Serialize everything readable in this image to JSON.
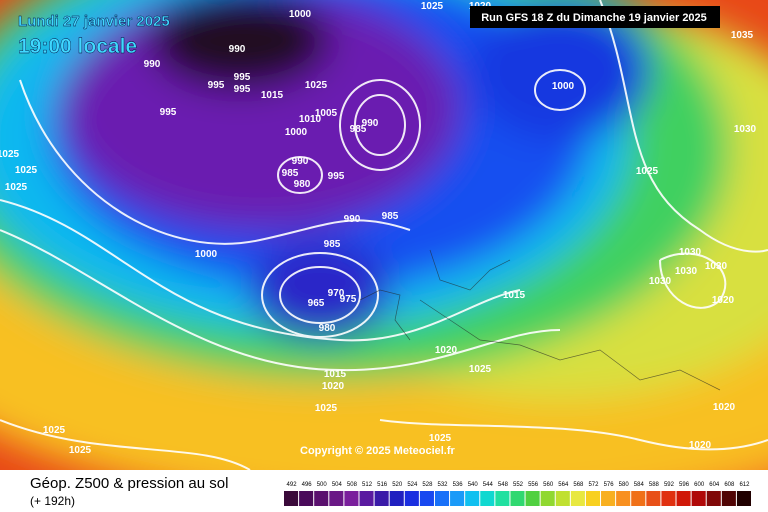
{
  "header": {
    "date": "Lundi 27 janvier 2025",
    "time": "19:00 locale",
    "run": "Run GFS 18 Z du Dimanche 19 janvier 2025"
  },
  "isobar_labels": [
    "1000",
    "1025",
    "1020",
    "1035",
    "990",
    "990",
    "995",
    "995",
    "995",
    "1015",
    "1025",
    "1000",
    "995",
    "1005",
    "1010",
    "1000",
    "985",
    "990",
    "1030",
    "1025",
    "990",
    "985",
    "980",
    "995",
    "1025",
    "1025",
    "1025",
    "990",
    "985",
    "985",
    "1000",
    "1030",
    "1030",
    "1030",
    "1030",
    "1015",
    "965",
    "975",
    "970",
    "1020",
    "980",
    "1020",
    "1025",
    "1015",
    "1020",
    "1025",
    "1020",
    "1025",
    "1025",
    "1025",
    "1020"
  ],
  "copyright": "Copyright © 2025 Meteociel.fr",
  "footer": {
    "title": "Géop. Z500 & pression au sol",
    "subtitle": "(+ 192h)"
  },
  "legend": {
    "ticks": [
      "492",
      "496",
      "500",
      "504",
      "508",
      "512",
      "516",
      "520",
      "524",
      "528",
      "532",
      "536",
      "540",
      "544",
      "548",
      "552",
      "556",
      "560",
      "564",
      "568",
      "572",
      "576",
      "580",
      "584",
      "588",
      "592",
      "596",
      "600",
      "604",
      "608",
      "612"
    ],
    "colors": [
      "#3a0a3a",
      "#4a0a5a",
      "#5a106e",
      "#6a1886",
      "#7a1e9c",
      "#5a1aa0",
      "#3a1aa8",
      "#2020c0",
      "#1a2ee0",
      "#1848f0",
      "#1870f8",
      "#1a9af8",
      "#10c0f0",
      "#10d8d0",
      "#20e0a0",
      "#30d870",
      "#50d040",
      "#90d830",
      "#c0e030",
      "#e8e840",
      "#f8d020",
      "#f8b020",
      "#f89020",
      "#f07018",
      "#e85018",
      "#e03010",
      "#d01808",
      "#b00808",
      "#800808",
      "#500404",
      "#200000"
    ]
  }
}
